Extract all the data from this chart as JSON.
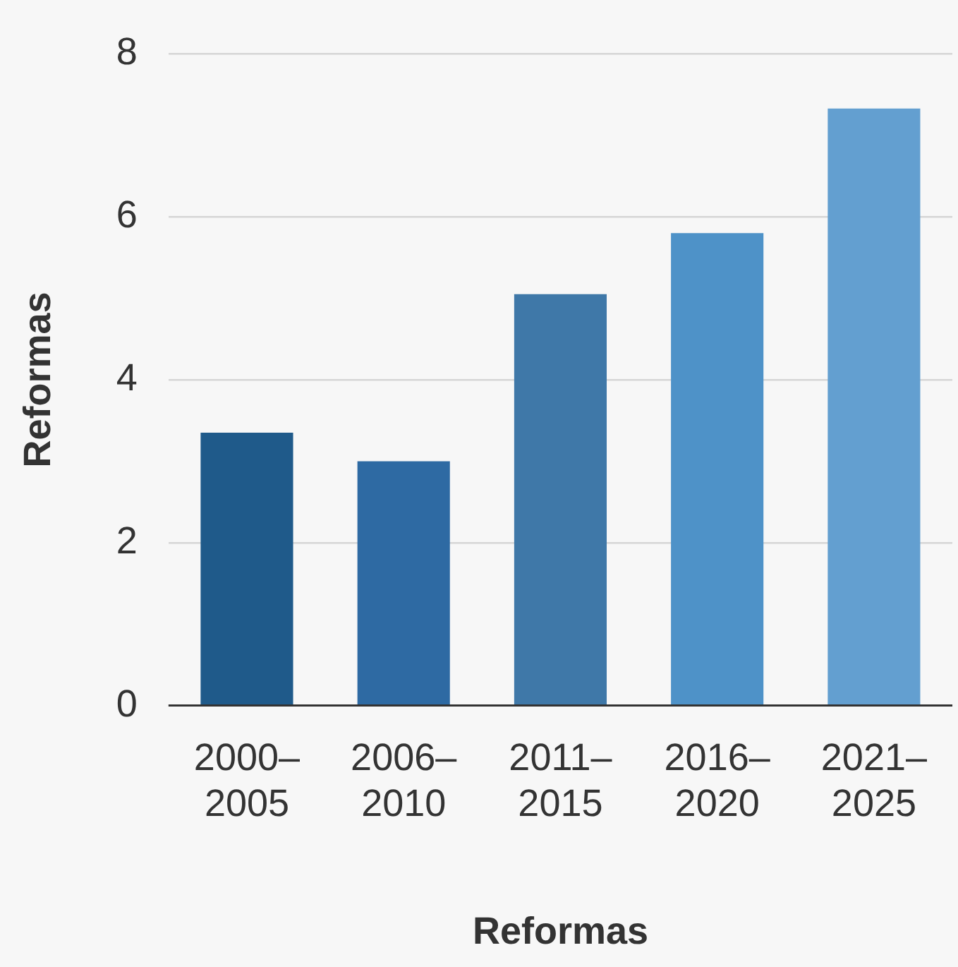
{
  "chart_data": {
    "type": "bar",
    "xlabel": "Reformas",
    "ylabel": "Reformas",
    "categories": [
      "2000–2005",
      "2006–2010",
      "2011–2015",
      "2016–2020",
      "2021–2025"
    ],
    "values": [
      3.35,
      3.0,
      5.05,
      5.8,
      7.33
    ],
    "colors": [
      "#1f5a8a",
      "#2e6aa3",
      "#3f78a8",
      "#4e92c8",
      "#639fd0"
    ],
    "ylim": [
      0,
      8
    ],
    "yticks": [
      0,
      2,
      4,
      6,
      8
    ],
    "grid": "y",
    "legend": false
  }
}
